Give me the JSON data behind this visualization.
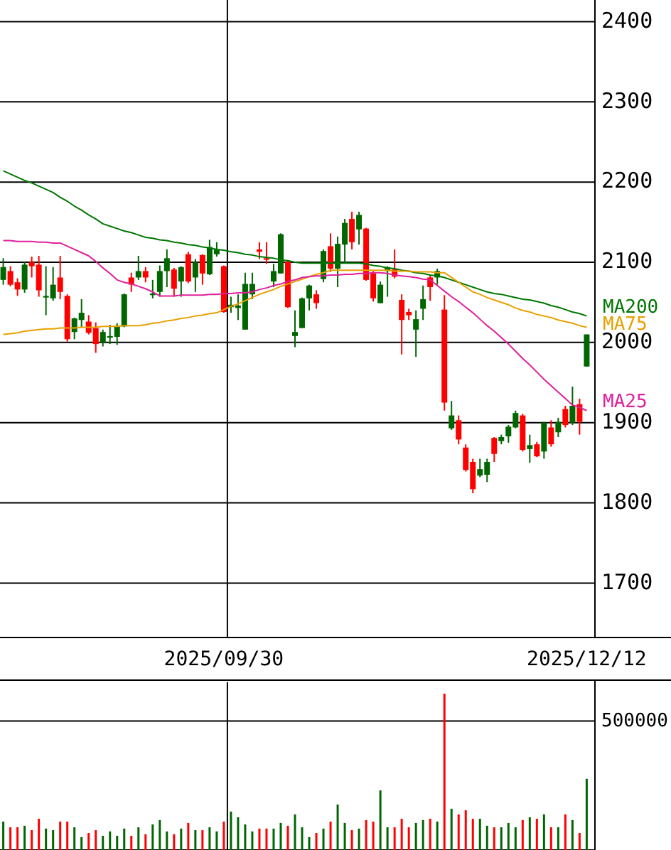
{
  "chart_data": [
    {
      "type": "candlestick",
      "categories": [
        null,
        null,
        null,
        null,
        null,
        null,
        null,
        null,
        null,
        null,
        null,
        null,
        null,
        null,
        null,
        null,
        null,
        null,
        null,
        null,
        null,
        null,
        null,
        null,
        null,
        null,
        null,
        null,
        null,
        null,
        null,
        "2025/09/30",
        null,
        null,
        null,
        null,
        null,
        null,
        null,
        null,
        null,
        null,
        null,
        null,
        null,
        null,
        null,
        null,
        null,
        null,
        null,
        null,
        null,
        null,
        null,
        null,
        null,
        null,
        null,
        null,
        null,
        null,
        null,
        null,
        null,
        null,
        null,
        null,
        null,
        null,
        null,
        null,
        null,
        null,
        null,
        null,
        null,
        null,
        null,
        null,
        null,
        null,
        "2025/12/12"
      ],
      "ylim": [
        1633,
        2427
      ],
      "yticks": [
        1700,
        1800,
        1900,
        2000,
        2100,
        2200,
        2300,
        2400
      ],
      "grid": true,
      "series": [
        {
          "type": "candlestick",
          "ohlc": [
            [
              2078,
              2105,
              2072,
              2094
            ],
            [
              2089,
              2095,
              2070,
              2072
            ],
            [
              2075,
              2080,
              2058,
              2066
            ],
            [
              2066,
              2100,
              2062,
              2097
            ],
            [
              2100,
              2107,
              2081,
              2095
            ],
            [
              2097,
              2108,
              2057,
              2065
            ],
            [
              2056,
              2095,
              2034,
              2058
            ],
            [
              2055,
              2094,
              2052,
              2072
            ],
            [
              2081,
              2108,
              2054,
              2063
            ],
            [
              2058,
              2060,
              2001,
              2004
            ],
            [
              2013,
              2031,
              2004,
              2030
            ],
            [
              2028,
              2054,
              2019,
              2037
            ],
            [
              2026,
              2034,
              2010,
              2012
            ],
            [
              2018,
              2025,
              1987,
              1998
            ],
            [
              2000,
              2016,
              1995,
              2013
            ],
            [
              2006,
              2022,
              1998,
              2008
            ],
            [
              2007,
              2024,
              1997,
              2021
            ],
            [
              2020,
              2061,
              2019,
              2060
            ],
            [
              2081,
              2087,
              2063,
              2072
            ],
            [
              2081,
              2108,
              2078,
              2089
            ],
            [
              2089,
              2094,
              2075,
              2081
            ],
            [
              2059,
              2078,
              2055,
              2061
            ],
            [
              2063,
              2096,
              2057,
              2089
            ],
            [
              2089,
              2116,
              2069,
              2105
            ],
            [
              2091,
              2093,
              2057,
              2067
            ],
            [
              2076,
              2095,
              2057,
              2094
            ],
            [
              2110,
              2113,
              2074,
              2076
            ],
            [
              2081,
              2104,
              2063,
              2100
            ],
            [
              2109,
              2110,
              2072,
              2086
            ],
            [
              2085,
              2128,
              2084,
              2119
            ],
            [
              2110,
              2125,
              2107,
              2116
            ],
            [
              2095,
              2096,
              2037,
              2038
            ],
            [
              2044,
              2057,
              2037,
              2047
            ],
            [
              2043,
              2060,
              2028,
              2046
            ],
            [
              2016,
              2087,
              2016,
              2073
            ],
            [
              2060,
              2087,
              2054,
              2073
            ],
            [
              2116,
              2125,
              2104,
              2113
            ],
            [
              2105,
              2125,
              2098,
              2103
            ],
            [
              2076,
              2098,
              2069,
              2089
            ],
            [
              2086,
              2136,
              2086,
              2135
            ],
            [
              2101,
              2102,
              2043,
              2044
            ],
            [
              2008,
              2040,
              1994,
              2013
            ],
            [
              2018,
              2056,
              2018,
              2055
            ],
            [
              2055,
              2072,
              2040,
              2071
            ],
            [
              2060,
              2065,
              2042,
              2049
            ],
            [
              2079,
              2116,
              2075,
              2114
            ],
            [
              2120,
              2136,
              2088,
              2092
            ],
            [
              2092,
              2132,
              2069,
              2123
            ],
            [
              2122,
              2154,
              2099,
              2149
            ],
            [
              2154,
              2163,
              2116,
              2125
            ],
            [
              2141,
              2163,
              2122,
              2159
            ],
            [
              2142,
              2143,
              2077,
              2078
            ],
            [
              2086,
              2089,
              2051,
              2055
            ],
            [
              2049,
              2076,
              2049,
              2072
            ],
            [
              2089,
              2095,
              2057,
              2094
            ],
            [
              2091,
              2116,
              2080,
              2082
            ],
            [
              2053,
              2060,
              1985,
              2028
            ],
            [
              2038,
              2042,
              2028,
              2034
            ],
            [
              2016,
              2040,
              1982,
              2029
            ],
            [
              2042,
              2071,
              2028,
              2054
            ],
            [
              2081,
              2084,
              2052,
              2069
            ],
            [
              2081,
              2092,
              2072,
              2089
            ],
            [
              2041,
              2059,
              1915,
              1925
            ],
            [
              1893,
              1927,
              1891,
              1909
            ],
            [
              1903,
              1909,
              1873,
              1879
            ],
            [
              1869,
              1873,
              1839,
              1841
            ],
            [
              1851,
              1855,
              1812,
              1817
            ],
            [
              1834,
              1855,
              1832,
              1842
            ],
            [
              1835,
              1855,
              1826,
              1851
            ],
            [
              1881,
              1882,
              1851,
              1861
            ],
            [
              1877,
              1885,
              1873,
              1882
            ],
            [
              1883,
              1897,
              1875,
              1895
            ],
            [
              1894,
              1915,
              1893,
              1912
            ],
            [
              1909,
              1911,
              1864,
              1866
            ],
            [
              1867,
              1885,
              1850,
              1872
            ],
            [
              1873,
              1876,
              1857,
              1858
            ],
            [
              1864,
              1901,
              1855,
              1900
            ],
            [
              1894,
              1903,
              1870,
              1873
            ],
            [
              1888,
              1906,
              1882,
              1901
            ],
            [
              1917,
              1921,
              1894,
              1897
            ],
            [
              1900,
              1945,
              1897,
              1921
            ],
            [
              1923,
              1930,
              1885,
              1901
            ],
            [
              1970,
              2010,
              1970,
              2010
            ]
          ],
          "colors": [
            "#006600",
            "#ff0000",
            "#ff0000",
            "#006600",
            "#ff0000",
            "#ff0000",
            "#006600",
            "#006600",
            "#ff0000",
            "#ff0000",
            "#006600",
            "#006600",
            "#ff0000",
            "#ff0000",
            "#006600",
            "#006600",
            "#006600",
            "#006600",
            "#ff0000",
            "#006600",
            "#ff0000",
            "#006600",
            "#006600",
            "#006600",
            "#ff0000",
            "#006600",
            "#ff0000",
            "#006600",
            "#ff0000",
            "#006600",
            "#006600",
            "#ff0000",
            "#006600",
            "#006600",
            "#006600",
            "#006600",
            "#ff0000",
            "#ff0000",
            "#006600",
            "#006600",
            "#ff0000",
            "#006600",
            "#006600",
            "#006600",
            "#ff0000",
            "#006600",
            "#ff0000",
            "#006600",
            "#006600",
            "#ff0000",
            "#006600",
            "#ff0000",
            "#ff0000",
            "#006600",
            "#006600",
            "#ff0000",
            "#ff0000",
            "#ff0000",
            "#006600",
            "#006600",
            "#ff0000",
            "#006600",
            "#ff0000",
            "#006600",
            "#ff0000",
            "#ff0000",
            "#ff0000",
            "#006600",
            "#006600",
            "#ff0000",
            "#006600",
            "#006600",
            "#006600",
            "#ff0000",
            "#006600",
            "#ff0000",
            "#006600",
            "#ff0000",
            "#006600",
            "#ff0000",
            "#006600",
            "#ff0000",
            "#006600"
          ]
        },
        {
          "type": "line",
          "name": "MA200",
          "color": "#007700",
          "values": [
            2214,
            2210,
            2206,
            2202,
            2199,
            2195,
            2191,
            2187,
            2181,
            2176,
            2170,
            2165,
            2159,
            2154,
            2148,
            2145,
            2142,
            2139,
            2137,
            2134,
            2131,
            2130,
            2128,
            2127,
            2125,
            2124,
            2122,
            2121,
            2119,
            2118,
            2116,
            2115,
            2113,
            2112,
            2110,
            2109,
            2107,
            2106,
            2105,
            2103,
            2102,
            2100,
            2099,
            2099,
            2099,
            2099,
            2099,
            2099,
            2099,
            2099,
            2099,
            2098,
            2096,
            2095,
            2093,
            2092,
            2090,
            2089,
            2087,
            2086,
            2084,
            2083,
            2081,
            2078,
            2075,
            2072,
            2069,
            2066,
            2063,
            2061,
            2060,
            2058,
            2056,
            2054,
            2053,
            2051,
            2049,
            2046,
            2044,
            2041,
            2038,
            2036,
            2033
          ]
        },
        {
          "type": "line",
          "name": "MA75",
          "color": "#e8a000",
          "values": [
            2010,
            2011,
            2012,
            2014,
            2015,
            2016,
            2017,
            2017,
            2018,
            2018,
            2018,
            2019,
            2019,
            2019,
            2020,
            2020,
            2020,
            2021,
            2021,
            2021,
            2022,
            2024,
            2025,
            2027,
            2028,
            2030,
            2031,
            2033,
            2034,
            2036,
            2037,
            2041,
            2045,
            2048,
            2052,
            2056,
            2060,
            2063,
            2066,
            2070,
            2073,
            2076,
            2079,
            2082,
            2085,
            2087,
            2090,
            2090,
            2090,
            2090,
            2090,
            2090,
            2090,
            2090,
            2090,
            2089,
            2089,
            2089,
            2088,
            2088,
            2088,
            2087,
            2087,
            2081,
            2075,
            2069,
            2063,
            2060,
            2056,
            2053,
            2050,
            2047,
            2043,
            2040,
            2038,
            2035,
            2033,
            2031,
            2028,
            2026,
            2024,
            2021,
            2019
          ]
        },
        {
          "type": "line",
          "name": "MA25",
          "color": "#e0209a",
          "values": [
            2127,
            2127,
            2126,
            2126,
            2126,
            2125,
            2125,
            2124,
            2124,
            2120,
            2116,
            2112,
            2108,
            2101,
            2093,
            2086,
            2078,
            2075,
            2073,
            2070,
            2067,
            2063,
            2058,
            2058,
            2058,
            2059,
            2059,
            2059,
            2059,
            2060,
            2060,
            2061,
            2061,
            2062,
            2062,
            2063,
            2066,
            2068,
            2071,
            2073,
            2076,
            2078,
            2081,
            2082,
            2083,
            2083,
            2084,
            2084,
            2085,
            2085,
            2086,
            2086,
            2087,
            2087,
            2086,
            2084,
            2083,
            2082,
            2081,
            2079,
            2078,
            2071,
            2064,
            2057,
            2051,
            2044,
            2037,
            2029,
            2021,
            2014,
            2006,
            1998,
            1989,
            1980,
            1972,
            1963,
            1954,
            1946,
            1938,
            1930,
            1922,
            1919,
            1915
          ]
        }
      ]
    },
    {
      "type": "bar",
      "tick_labels": "y",
      "categories": [
        null,
        null,
        null,
        null,
        null,
        null,
        null,
        null,
        null,
        null,
        null,
        null,
        null,
        null,
        null,
        null,
        null,
        null,
        null,
        null,
        null,
        null,
        null,
        null,
        null,
        null,
        null,
        null,
        null,
        null,
        null,
        "2025/09/30",
        null,
        null,
        null,
        null,
        null,
        null,
        null,
        null,
        null,
        null,
        null,
        null,
        null,
        null,
        null,
        null,
        null,
        null,
        null,
        null,
        null,
        null,
        null,
        null,
        null,
        null,
        null,
        null,
        null,
        null,
        null,
        null,
        null,
        null,
        null,
        null,
        null,
        null,
        null,
        null,
        null,
        null,
        null,
        null,
        null,
        null,
        null,
        null,
        null,
        null,
        "2025/12/12"
      ],
      "ylim": [
        0,
        650000
      ],
      "yticks": [
        {
          "value": 0,
          "label": null
        },
        500000
      ],
      "grid": true,
      "values": [
        110000,
        88000,
        88000,
        94000,
        77000,
        121000,
        83000,
        77000,
        110000,
        110000,
        88000,
        50000,
        66000,
        77000,
        55000,
        72000,
        55000,
        83000,
        55000,
        88000,
        61000,
        99000,
        116000,
        72000,
        61000,
        83000,
        105000,
        77000,
        77000,
        88000,
        72000,
        110000,
        149000,
        127000,
        99000,
        72000,
        83000,
        83000,
        83000,
        105000,
        94000,
        138000,
        88000,
        50000,
        66000,
        83000,
        110000,
        176000,
        105000,
        77000,
        83000,
        116000,
        110000,
        231000,
        88000,
        88000,
        121000,
        88000,
        105000,
        116000,
        121000,
        110000,
        606000,
        160000,
        138000,
        154000,
        121000,
        121000,
        94000,
        88000,
        88000,
        105000,
        88000,
        116000,
        127000,
        121000,
        138000,
        88000,
        88000,
        138000,
        116000,
        66000,
        276000
      ],
      "colors": [
        "#006600",
        "#ff0000",
        "#ff0000",
        "#006600",
        "#ff0000",
        "#ff0000",
        "#006600",
        "#006600",
        "#ff0000",
        "#ff0000",
        "#006600",
        "#006600",
        "#ff0000",
        "#ff0000",
        "#006600",
        "#006600",
        "#006600",
        "#006600",
        "#ff0000",
        "#006600",
        "#ff0000",
        "#006600",
        "#006600",
        "#006600",
        "#ff0000",
        "#006600",
        "#ff0000",
        "#006600",
        "#ff0000",
        "#006600",
        "#006600",
        "#ff0000",
        "#006600",
        "#006600",
        "#006600",
        "#006600",
        "#ff0000",
        "#ff0000",
        "#006600",
        "#006600",
        "#ff0000",
        "#006600",
        "#006600",
        "#006600",
        "#ff0000",
        "#006600",
        "#ff0000",
        "#006600",
        "#006600",
        "#ff0000",
        "#006600",
        "#ff0000",
        "#ff0000",
        "#006600",
        "#006600",
        "#ff0000",
        "#ff0000",
        "#ff0000",
        "#006600",
        "#006600",
        "#ff0000",
        "#006600",
        "#ff0000",
        "#006600",
        "#ff0000",
        "#ff0000",
        "#ff0000",
        "#006600",
        "#006600",
        "#ff0000",
        "#006600",
        "#006600",
        "#006600",
        "#ff0000",
        "#006600",
        "#ff0000",
        "#006600",
        "#ff0000",
        "#006600",
        "#ff0000",
        "#006600",
        "#ff0000",
        "#006600"
      ]
    }
  ]
}
